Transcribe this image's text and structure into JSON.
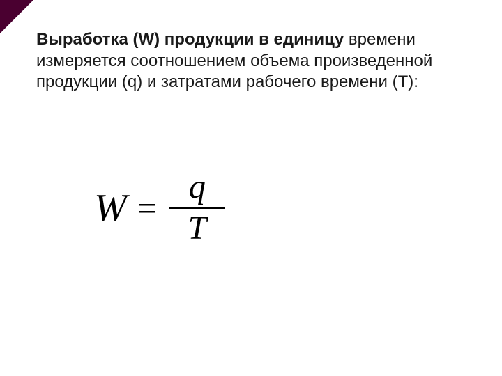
{
  "colors": {
    "corner": "#4a0030",
    "text": "#1a1a1a",
    "formula": "#000000",
    "background": "#ffffff"
  },
  "typography": {
    "body_font": "Arial",
    "body_size_pt": 18,
    "formula_font": "Georgia",
    "formula_size_pt": 42,
    "formula_style": "italic"
  },
  "text": {
    "bold_lead": "Выработка (W) продукции в единицу",
    "rest": "времени измеряется соотношением объема произведенной продукции (q) и затратами рабочего времени (Т):"
  },
  "formula": {
    "lhs": "W",
    "eq": "=",
    "numerator": "q",
    "denominator": "T"
  }
}
